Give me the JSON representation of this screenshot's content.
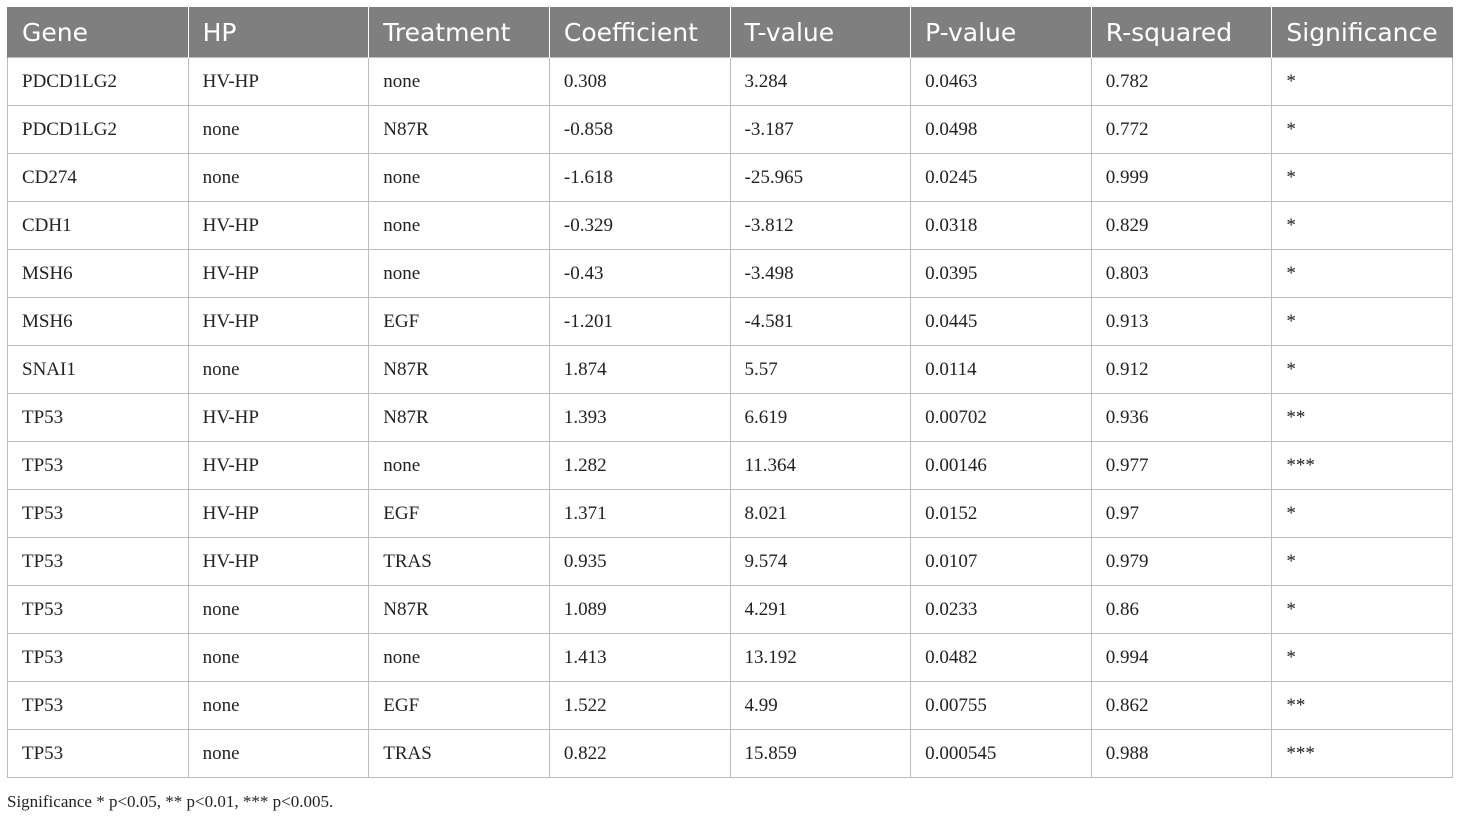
{
  "table": {
    "headers": [
      "Gene",
      "HP",
      "Treatment",
      "Coefficient",
      "T-value",
      "P-value",
      "R-squared",
      "Significance"
    ],
    "rows": [
      [
        "PDCD1LG2",
        "HV-HP",
        "none",
        "0.308",
        "3.284",
        "0.0463",
        "0.782",
        "*"
      ],
      [
        "PDCD1LG2",
        "none",
        "N87R",
        "-0.858",
        "-3.187",
        "0.0498",
        "0.772",
        "*"
      ],
      [
        "CD274",
        "none",
        "none",
        "-1.618",
        "-25.965",
        "0.0245",
        "0.999",
        "*"
      ],
      [
        "CDH1",
        "HV-HP",
        "none",
        "-0.329",
        "-3.812",
        "0.0318",
        "0.829",
        "*"
      ],
      [
        "MSH6",
        "HV-HP",
        "none",
        "-0.43",
        "-3.498",
        "0.0395",
        "0.803",
        "*"
      ],
      [
        "MSH6",
        "HV-HP",
        "EGF",
        "-1.201",
        "-4.581",
        "0.0445",
        "0.913",
        "*"
      ],
      [
        "SNAI1",
        "none",
        "N87R",
        "1.874",
        "5.57",
        "0.0114",
        "0.912",
        "*"
      ],
      [
        "TP53",
        "HV-HP",
        "N87R",
        "1.393",
        "6.619",
        "0.00702",
        "0.936",
        "**"
      ],
      [
        "TP53",
        "HV-HP",
        "none",
        "1.282",
        "11.364",
        "0.00146",
        "0.977",
        "***"
      ],
      [
        "TP53",
        "HV-HP",
        "EGF",
        "1.371",
        "8.021",
        "0.0152",
        "0.97",
        "*"
      ],
      [
        "TP53",
        "HV-HP",
        "TRAS",
        "0.935",
        "9.574",
        "0.0107",
        "0.979",
        "*"
      ],
      [
        "TP53",
        "none",
        "N87R",
        "1.089",
        "4.291",
        "0.0233",
        "0.86",
        "*"
      ],
      [
        "TP53",
        "none",
        "none",
        "1.413",
        "13.192",
        "0.0482",
        "0.994",
        "*"
      ],
      [
        "TP53",
        "none",
        "EGF",
        "1.522",
        "4.99",
        "0.00755",
        "0.862",
        "**"
      ],
      [
        "TP53",
        "none",
        "TRAS",
        "0.822",
        "15.859",
        "0.000545",
        "0.988",
        "***"
      ]
    ]
  },
  "footnote": "Significance * p<0.05, ** p<0.01, *** p<0.005.",
  "colors": {
    "header_bg": "#7f7f7f",
    "header_text": "#ffffff",
    "grid": "#bdbdbd"
  }
}
